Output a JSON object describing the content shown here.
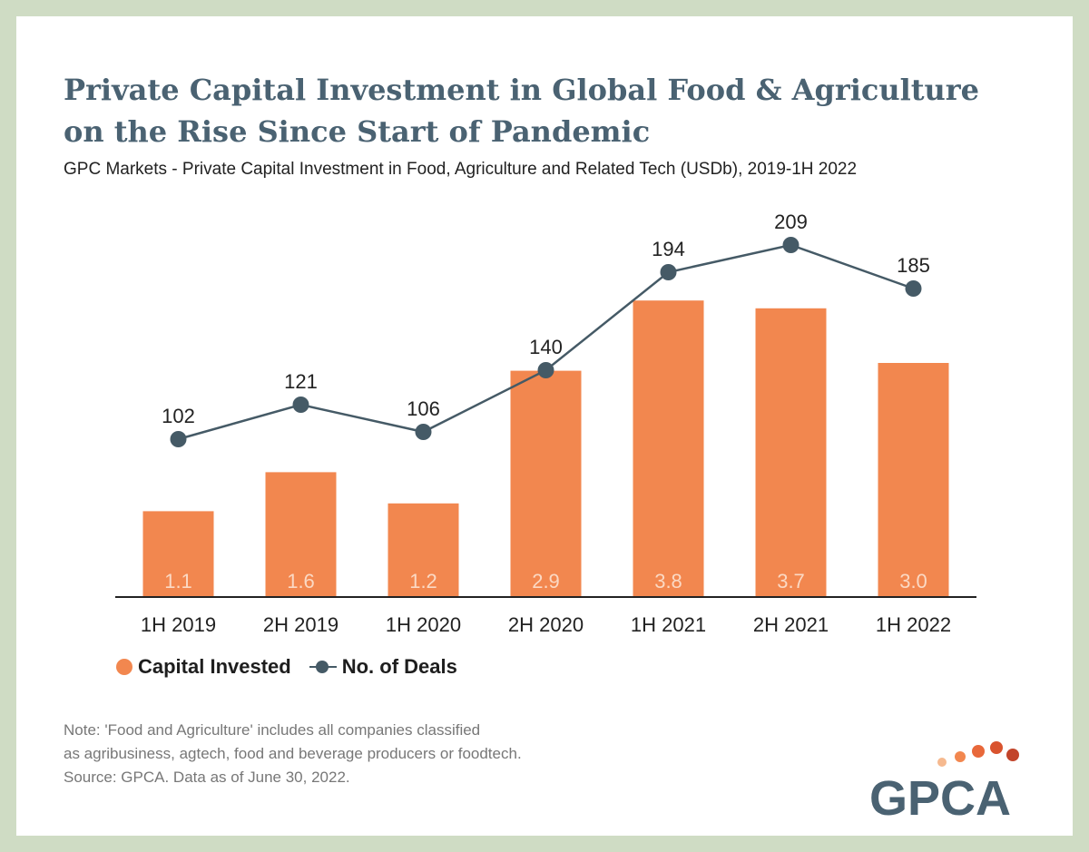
{
  "title": {
    "line1": "Private Capital Investment in Global Food & Agriculture",
    "line2": "on the Rise Since Start of Pandemic"
  },
  "subtitle": "GPC Markets - Private Capital Investment in Food, Agriculture and Related Tech (USDb), 2019-1H 2022",
  "legend": {
    "bars": "Capital Invested",
    "line": "No. of Deals"
  },
  "note": {
    "line1": "Note: 'Food and Agriculture' includes all companies classified",
    "line2": "as agribusiness, agtech, food and beverage producers or foodtech.",
    "line3": "Source: GPCA. Data as of June 30, 2022."
  },
  "logo": {
    "text": "GPCA"
  },
  "colors": {
    "bar": "#f2874f",
    "line": "#455a66",
    "background": "#cfdcc4",
    "title": "#4a6272",
    "logo_dots": [
      "#f6b98f",
      "#f2874f",
      "#e8683a",
      "#d9532e",
      "#c2442a"
    ]
  },
  "chart_data": {
    "type": "bar",
    "categories": [
      "1H 2019",
      "2H 2019",
      "1H 2020",
      "2H 2020",
      "1H 2021",
      "2H 2021",
      "1H 2022"
    ],
    "series": [
      {
        "name": "Capital Invested",
        "type": "bar",
        "values": [
          1.1,
          1.6,
          1.2,
          2.9,
          3.8,
          3.7,
          3.0
        ]
      },
      {
        "name": "No. of Deals",
        "type": "line",
        "values": [
          102,
          121,
          106,
          140,
          194,
          209,
          185
        ]
      }
    ],
    "title": "Private Capital Investment in Global Food & Agriculture on the Rise Since Start of Pandemic",
    "subtitle": "GPC Markets - Private Capital Investment in Food, Agriculture and Related Tech (USDb), 2019-1H 2022",
    "legend_position": "bottom-left",
    "grid": false
  }
}
